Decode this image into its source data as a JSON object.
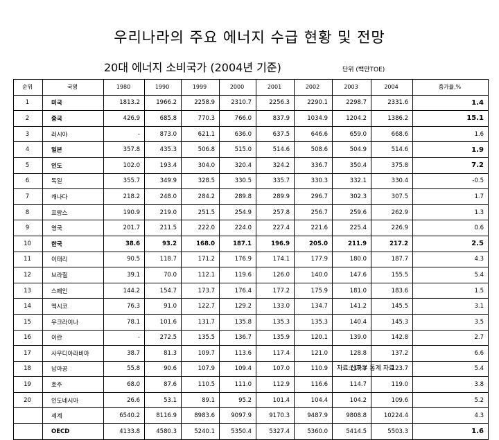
{
  "title": "우리나라의 주요 에너지 수급 현황 및 전망",
  "subtitle": "20대 에너지 소비국가 (2004년 기준)",
  "unit": "단위 (백만TOE)",
  "source": "자료:산자부 통계 자료",
  "table": {
    "headers": [
      "순위",
      "국명",
      "1980",
      "1990",
      "1999",
      "2000",
      "2001",
      "2002",
      "2003",
      "2004",
      "증가율,%"
    ],
    "rows": [
      {
        "rank": "1",
        "country": "미국",
        "values": [
          "1813.2",
          "1966.2",
          "2258.9",
          "2310.7",
          "2256.3",
          "2290.1",
          "2298.7",
          "2331.6"
        ],
        "rate": "1.4",
        "bold_country": true,
        "bold_rate": true
      },
      {
        "rank": "2",
        "country": "중국",
        "values": [
          "426.9",
          "685.8",
          "770.3",
          "766.0",
          "837.9",
          "1034.9",
          "1204.2",
          "1386.2"
        ],
        "rate": "15.1",
        "bold_country": true,
        "bold_rate": true
      },
      {
        "rank": "3",
        "country": "러시아",
        "values": [
          "-",
          "873.0",
          "621.1",
          "636.0",
          "637.5",
          "646.6",
          "659.0",
          "668.6"
        ],
        "rate": "1.6",
        "bold_country": false,
        "bold_rate": false
      },
      {
        "rank": "4",
        "country": "일본",
        "values": [
          "357.8",
          "435.3",
          "506.8",
          "515.0",
          "514.6",
          "508.6",
          "504.9",
          "514.6"
        ],
        "rate": "1.9",
        "bold_country": true,
        "bold_rate": true
      },
      {
        "rank": "5",
        "country": "인도",
        "values": [
          "102.0",
          "193.4",
          "304.0",
          "320.4",
          "324.2",
          "336.7",
          "350.4",
          "375.8"
        ],
        "rate": "7.2",
        "bold_country": true,
        "bold_rate": true
      },
      {
        "rank": "6",
        "country": "독일",
        "values": [
          "355.7",
          "349.9",
          "328.5",
          "330.5",
          "335.7",
          "330.3",
          "332.1",
          "330.4"
        ],
        "rate": "-0.5",
        "bold_country": false,
        "bold_rate": false
      },
      {
        "rank": "7",
        "country": "캐나다",
        "values": [
          "218.2",
          "248.0",
          "284.2",
          "289.8",
          "289.9",
          "296.7",
          "302.3",
          "307.5"
        ],
        "rate": "1.7",
        "bold_country": false,
        "bold_rate": false
      },
      {
        "rank": "8",
        "country": "프랑스",
        "values": [
          "190.9",
          "219.0",
          "251.5",
          "254.9",
          "257.8",
          "256.7",
          "259.6",
          "262.9"
        ],
        "rate": "1.3",
        "bold_country": false,
        "bold_rate": false
      },
      {
        "rank": "9",
        "country": "영국",
        "values": [
          "201.7",
          "211.5",
          "222.0",
          "224.0",
          "227.4",
          "221.6",
          "225.4",
          "226.9"
        ],
        "rate": "0.6",
        "bold_country": false,
        "bold_rate": false
      },
      {
        "rank": "10",
        "country": "한국",
        "values": [
          "38.6",
          "93.2",
          "168.0",
          "187.1",
          "196.9",
          "205.0",
          "211.9",
          "217.2"
        ],
        "rate": "2.5",
        "bold_country": true,
        "bold_rate": true,
        "highlight": true
      },
      {
        "rank": "11",
        "country": "이태리",
        "values": [
          "90.5",
          "118.7",
          "171.2",
          "176.9",
          "174.1",
          "177.9",
          "180.0",
          "187.7"
        ],
        "rate": "4.3",
        "bold_country": false,
        "bold_rate": false
      },
      {
        "rank": "12",
        "country": "브라질",
        "values": [
          "39.1",
          "70.0",
          "112.1",
          "119.6",
          "126.0",
          "140.0",
          "147.6",
          "155.5"
        ],
        "rate": "5.4",
        "bold_country": false,
        "bold_rate": false
      },
      {
        "rank": "13",
        "country": "스페인",
        "values": [
          "144.2",
          "154.7",
          "173.7",
          "176.4",
          "177.2",
          "175.9",
          "181.0",
          "183.6"
        ],
        "rate": "1.5",
        "bold_country": false,
        "bold_rate": false
      },
      {
        "rank": "14",
        "country": "멕시코",
        "values": [
          "76.3",
          "91.0",
          "122.7",
          "129.2",
          "133.0",
          "134.7",
          "141.2",
          "145.5"
        ],
        "rate": "3.1",
        "bold_country": false,
        "bold_rate": false
      },
      {
        "rank": "15",
        "country": "우크라이나",
        "values": [
          "78.1",
          "101.6",
          "131.7",
          "135.8",
          "135.3",
          "135.3",
          "140.4",
          "145.3"
        ],
        "rate": "3.5",
        "bold_country": false,
        "bold_rate": false
      },
      {
        "rank": "16",
        "country": "이란",
        "values": [
          "-",
          "272.5",
          "135.5",
          "136.7",
          "135.9",
          "120.1",
          "139.0",
          "142.8"
        ],
        "rate": "2.7",
        "bold_country": false,
        "bold_rate": false
      },
      {
        "rank": "17",
        "country": "사우디아라비아",
        "values": [
          "38.7",
          "81.3",
          "109.7",
          "113.6",
          "117.4",
          "121.0",
          "128.8",
          "137.2"
        ],
        "rate": "6.6",
        "bold_country": false,
        "bold_rate": false
      },
      {
        "rank": "18",
        "country": "남아공",
        "values": [
          "55.8",
          "90.6",
          "107.9",
          "109.4",
          "107.0",
          "110.9",
          "117.3",
          "123.7"
        ],
        "rate": "5.4",
        "bold_country": false,
        "bold_rate": false
      },
      {
        "rank": "19",
        "country": "호주",
        "values": [
          "68.0",
          "87.6",
          "110.5",
          "111.0",
          "112.9",
          "116.6",
          "114.7",
          "119.0"
        ],
        "rate": "3.8",
        "bold_country": false,
        "bold_rate": false
      },
      {
        "rank": "20",
        "country": "인도네시아",
        "values": [
          "26.6",
          "53.1",
          "89.1",
          "95.2",
          "101.4",
          "104.4",
          "104.2",
          "109.6"
        ],
        "rate": "5.2",
        "bold_country": false,
        "bold_rate": false
      },
      {
        "rank": "",
        "country": "세계",
        "values": [
          "6540.2",
          "8116.9",
          "8983.6",
          "9097.9",
          "9170.3",
          "9487.9",
          "9808.8",
          "10224.4"
        ],
        "rate": "4.3",
        "bold_country": false,
        "bold_rate": false
      },
      {
        "rank": "",
        "country": "OECD",
        "values": [
          "4133.8",
          "4580.3",
          "5240.1",
          "5350.4",
          "5327.4",
          "5360.0",
          "5414.5",
          "5503.3"
        ],
        "rate": "1.6",
        "bold_country": true,
        "bold_rate": true
      }
    ]
  }
}
